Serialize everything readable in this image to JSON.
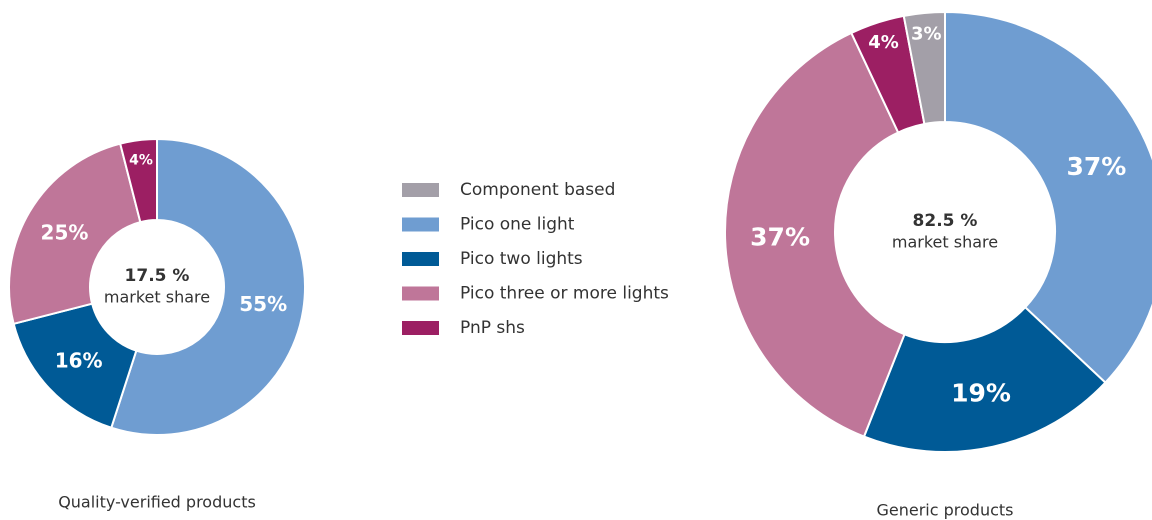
{
  "chart_data": [
    {
      "type": "pie",
      "title": "Quality-verified products",
      "center_value": "17.5 %",
      "center_label": "market share",
      "categories": [
        "Component based",
        "Pico one light",
        "Pico two lights",
        "Pico three or more lights",
        "PnP shs"
      ],
      "values": [
        0,
        55,
        16,
        25,
        4
      ],
      "labels": [
        "",
        "55%",
        "16%",
        "25%",
        "4%"
      ]
    },
    {
      "type": "pie",
      "title": "Generic products",
      "center_value": "82.5 %",
      "center_label": "market share",
      "categories": [
        "Component based",
        "Pico one light",
        "Pico two lights",
        "Pico three or more lights",
        "PnP shs"
      ],
      "values": [
        3,
        37,
        19,
        37,
        4
      ],
      "labels": [
        "3%",
        "37%",
        "19%",
        "37%",
        "4%"
      ]
    }
  ],
  "legend": {
    "placement": "center",
    "items": [
      {
        "label": "Component based",
        "color": "#a39fa8"
      },
      {
        "label": "Pico one light",
        "color": "#6f9dd1"
      },
      {
        "label": "Pico two lights",
        "color": "#005a96"
      },
      {
        "label": "Pico three or more lights",
        "color": "#bf7699"
      },
      {
        "label": "PnP shs",
        "color": "#9c1f63"
      }
    ]
  }
}
